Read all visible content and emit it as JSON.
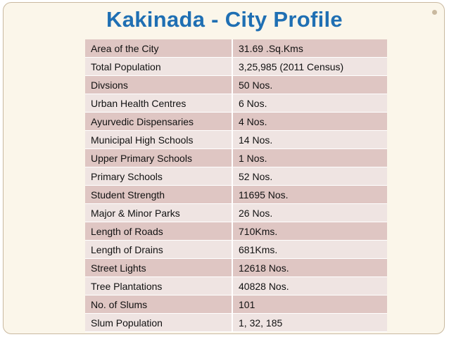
{
  "slide": {
    "title": "Kakinada - City Profile"
  },
  "table": {
    "rows": [
      {
        "label": "Area of the City",
        "value": "31.69 .Sq.Kms"
      },
      {
        "label": "Total Population",
        "value": "3,25,985 (2011 Census)"
      },
      {
        "label": "Divsions",
        "value": "50 Nos."
      },
      {
        "label": "Urban Health Centres",
        "value": "6 Nos."
      },
      {
        "label": "Ayurvedic Dispensaries",
        "value": "4 Nos."
      },
      {
        "label": "Municipal High Schools",
        "value": "14 Nos."
      },
      {
        "label": "Upper Primary Schools",
        "value": "1 Nos."
      },
      {
        "label": "Primary Schools",
        "value": "52 Nos."
      },
      {
        "label": "Student Strength",
        "value": "11695 Nos."
      },
      {
        "label": "Major & Minor Parks",
        "value": "26 Nos."
      },
      {
        "label": "Length of Roads",
        "value": "710Kms."
      },
      {
        "label": "Length of Drains",
        "value": "681Kms."
      },
      {
        "label": "Street Lights",
        "value": "12618 Nos."
      },
      {
        "label": "Tree Plantations",
        "value": "40828 Nos."
      },
      {
        "label": "No. of Slums",
        "value": "101"
      },
      {
        "label": "Slum Population",
        "value": "1, 32, 185"
      }
    ]
  },
  "colors": {
    "title": "#1f6fb3",
    "row_dark": "#dfc6c3",
    "row_light": "#efe4e2",
    "background": "#fbf6ea"
  }
}
